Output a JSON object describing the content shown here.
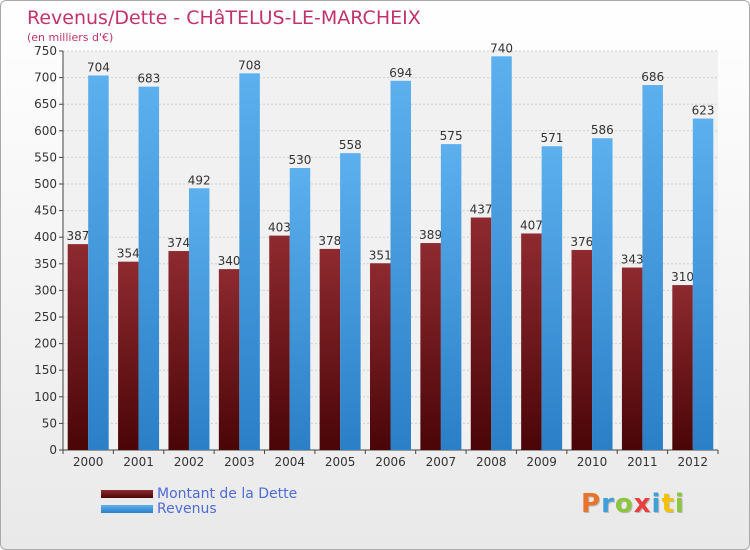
{
  "chart_data": {
    "type": "bar",
    "title": "Revenus/Dette - CHâTELUS-LE-MARCHEIX",
    "subtitle": "(en milliers d'€)",
    "categories": [
      "2000",
      "2001",
      "2002",
      "2003",
      "2004",
      "2005",
      "2006",
      "2007",
      "2008",
      "2009",
      "2010",
      "2011",
      "2012"
    ],
    "series": [
      {
        "name": "Montant de la Dette",
        "color": "#7b1a1f",
        "values": [
          387,
          354,
          374,
          340,
          403,
          378,
          351,
          389,
          437,
          407,
          376,
          343,
          310
        ]
      },
      {
        "name": "Revenus",
        "color": "#3f9ae5",
        "values": [
          704,
          683,
          492,
          708,
          530,
          558,
          694,
          575,
          740,
          571,
          586,
          686,
          623
        ]
      }
    ],
    "ylim": [
      0,
      750
    ],
    "yticks": [
      0,
      50,
      100,
      150,
      200,
      250,
      300,
      350,
      400,
      450,
      500,
      550,
      600,
      650,
      700,
      750
    ],
    "grid": true,
    "xlabel": "",
    "ylabel": "",
    "legend_position": "bottom-left"
  },
  "logo": {
    "letters": [
      {
        "ch": "P",
        "color": "#e8742a"
      },
      {
        "ch": "r",
        "color": "#3fa0d6"
      },
      {
        "ch": "o",
        "color": "#8cc63f"
      },
      {
        "ch": "x",
        "color": "#e83e3e"
      },
      {
        "ch": "i",
        "color": "#3fa0d6"
      },
      {
        "ch": "t",
        "color": "#f2c200"
      },
      {
        "ch": "i",
        "color": "#8cc63f"
      }
    ]
  }
}
